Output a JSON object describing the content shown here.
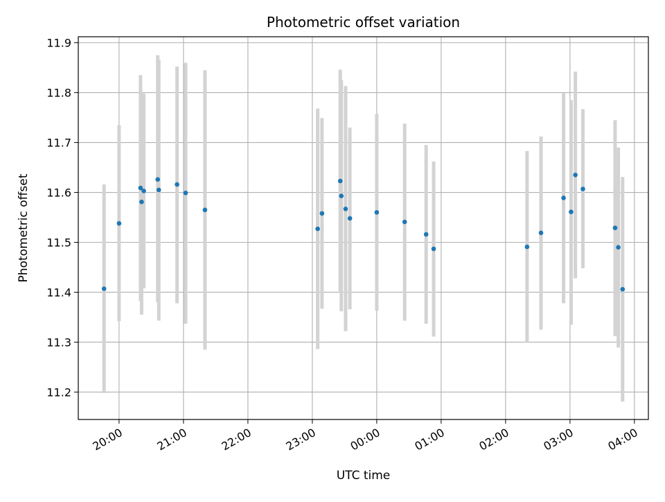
{
  "chart_data": {
    "type": "scatter",
    "title": "Photometric offset variation",
    "xlabel": "UTC time",
    "ylabel": "Photometric offset",
    "grid": true,
    "xlim": [
      "19:22",
      "04:13"
    ],
    "ylim": [
      11.145,
      11.912
    ],
    "x_ticks": [
      "20:00",
      "21:00",
      "22:00",
      "23:00",
      "00:00",
      "01:00",
      "02:00",
      "03:00",
      "04:00"
    ],
    "y_ticks": [
      "11.2",
      "11.3",
      "11.4",
      "11.5",
      "11.6",
      "11.7",
      "11.8",
      "11.9"
    ],
    "series": [
      {
        "marker_color": "#1f77b4",
        "errorbar_color": "#d3d3d3",
        "points": [
          {
            "x": "19:46",
            "y": 11.407,
            "ylow": 11.198,
            "yhigh": 11.616
          },
          {
            "x": "20:00",
            "y": 11.538,
            "ylow": 11.342,
            "yhigh": 11.735
          },
          {
            "x": "20:20",
            "y": 11.609,
            "ylow": 11.382,
            "yhigh": 11.835
          },
          {
            "x": "20:21",
            "y": 11.581,
            "ylow": 11.355,
            "yhigh": 11.8
          },
          {
            "x": "20:23",
            "y": 11.603,
            "ylow": 11.408,
            "yhigh": 11.798
          },
          {
            "x": "20:36",
            "y": 11.626,
            "ylow": 11.38,
            "yhigh": 11.875
          },
          {
            "x": "20:37",
            "y": 11.605,
            "ylow": 11.343,
            "yhigh": 11.866
          },
          {
            "x": "20:54",
            "y": 11.616,
            "ylow": 11.378,
            "yhigh": 11.852
          },
          {
            "x": "21:02",
            "y": 11.599,
            "ylow": 11.337,
            "yhigh": 11.86
          },
          {
            "x": "21:20",
            "y": 11.565,
            "ylow": 11.285,
            "yhigh": 11.845
          },
          {
            "x": "23:05",
            "y": 11.527,
            "ylow": 11.286,
            "yhigh": 11.768
          },
          {
            "x": "23:09",
            "y": 11.558,
            "ylow": 11.367,
            "yhigh": 11.749
          },
          {
            "x": "23:26",
            "y": 11.623,
            "ylow": 11.4,
            "yhigh": 11.846
          },
          {
            "x": "23:27",
            "y": 11.593,
            "ylow": 11.362,
            "yhigh": 11.825
          },
          {
            "x": "23:31",
            "y": 11.567,
            "ylow": 11.322,
            "yhigh": 11.813
          },
          {
            "x": "23:35",
            "y": 11.548,
            "ylow": 11.366,
            "yhigh": 11.73
          },
          {
            "x": "00:00",
            "y": 11.56,
            "ylow": 11.363,
            "yhigh": 11.757
          },
          {
            "x": "00:26",
            "y": 11.541,
            "ylow": 11.343,
            "yhigh": 11.738
          },
          {
            "x": "00:46",
            "y": 11.516,
            "ylow": 11.337,
            "yhigh": 11.695
          },
          {
            "x": "00:53",
            "y": 11.487,
            "ylow": 11.311,
            "yhigh": 11.662
          },
          {
            "x": "02:20",
            "y": 11.491,
            "ylow": 11.3,
            "yhigh": 11.683
          },
          {
            "x": "02:33",
            "y": 11.519,
            "ylow": 11.325,
            "yhigh": 11.712
          },
          {
            "x": "02:54",
            "y": 11.589,
            "ylow": 11.378,
            "yhigh": 11.8
          },
          {
            "x": "03:01",
            "y": 11.561,
            "ylow": 11.335,
            "yhigh": 11.785
          },
          {
            "x": "03:05",
            "y": 11.635,
            "ylow": 11.428,
            "yhigh": 11.842
          },
          {
            "x": "03:12",
            "y": 11.607,
            "ylow": 11.448,
            "yhigh": 11.767
          },
          {
            "x": "03:42",
            "y": 11.529,
            "ylow": 11.312,
            "yhigh": 11.745
          },
          {
            "x": "03:45",
            "y": 11.49,
            "ylow": 11.289,
            "yhigh": 11.69
          },
          {
            "x": "03:49",
            "y": 11.406,
            "ylow": 11.181,
            "yhigh": 11.631
          }
        ]
      }
    ]
  }
}
